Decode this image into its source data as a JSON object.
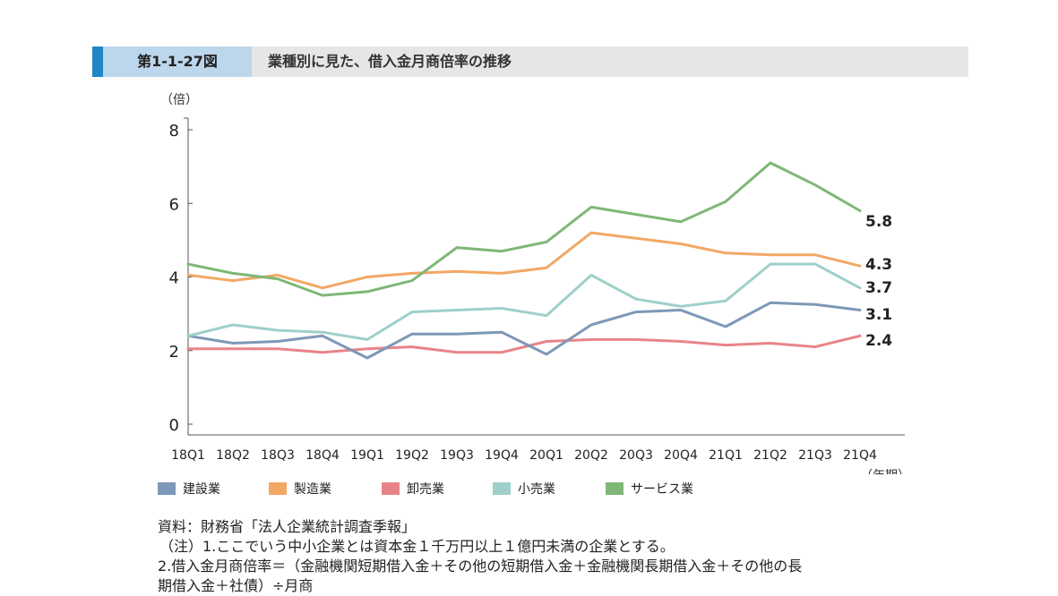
{
  "header": {
    "figure_label": "第1-1-27図",
    "title": "業種別に見た、借入金月商倍率の推移"
  },
  "chart_data": {
    "type": "line",
    "title": "",
    "ylabel": "（倍）",
    "xlabel": "（年期）",
    "ylim": [
      0,
      8
    ],
    "yticks": [
      0,
      2,
      4,
      6,
      8
    ],
    "grid": false,
    "legend_position": "bottom",
    "categories": [
      "18Q1",
      "18Q2",
      "18Q3",
      "18Q4",
      "19Q1",
      "19Q2",
      "19Q3",
      "19Q4",
      "20Q1",
      "20Q2",
      "20Q3",
      "20Q4",
      "21Q1",
      "21Q2",
      "21Q3",
      "21Q4"
    ],
    "series": [
      {
        "name": "建設業",
        "color": "#7d98b8",
        "values": [
          2.4,
          2.2,
          2.25,
          2.4,
          1.8,
          2.45,
          2.45,
          2.5,
          1.9,
          2.7,
          3.05,
          3.1,
          2.65,
          3.3,
          3.25,
          3.1
        ],
        "end_label": "3.1"
      },
      {
        "name": "製造業",
        "color": "#f2a865",
        "values": [
          4.05,
          3.9,
          4.05,
          3.7,
          4.0,
          4.1,
          4.15,
          4.1,
          4.25,
          5.2,
          5.05,
          4.9,
          4.65,
          4.6,
          4.6,
          4.3
        ],
        "end_label": "4.3"
      },
      {
        "name": "卸売業",
        "color": "#e88488",
        "values": [
          2.05,
          2.05,
          2.05,
          1.95,
          2.05,
          2.1,
          1.95,
          1.95,
          2.25,
          2.3,
          2.3,
          2.25,
          2.15,
          2.2,
          2.1,
          2.4
        ],
        "end_label": "2.4"
      },
      {
        "name": "小売業",
        "color": "#9ecfca",
        "values": [
          2.4,
          2.7,
          2.55,
          2.5,
          2.3,
          3.05,
          3.1,
          3.15,
          2.95,
          4.05,
          3.4,
          3.2,
          3.35,
          4.35,
          4.35,
          3.7
        ],
        "end_label": "3.7"
      },
      {
        "name": "サービス業",
        "color": "#7fb777",
        "values": [
          4.35,
          4.1,
          3.95,
          3.5,
          3.6,
          3.9,
          4.8,
          4.7,
          4.95,
          5.9,
          5.7,
          5.5,
          6.05,
          7.1,
          6.5,
          5.8
        ],
        "end_label": "5.8"
      }
    ]
  },
  "notes": {
    "source": "資料：財務省「法人企業統計調査季報」",
    "note1": "（注）1.ここでいう中小企業とは資本金１千万円以上１億円未満の企業とする。",
    "note2_line1": "2.借入金月商倍率＝（金融機関短期借入金＋その他の短期借入金＋金融機関長期借入金＋その他の長",
    "note2_line2": "期借入金＋社債）÷月商"
  }
}
